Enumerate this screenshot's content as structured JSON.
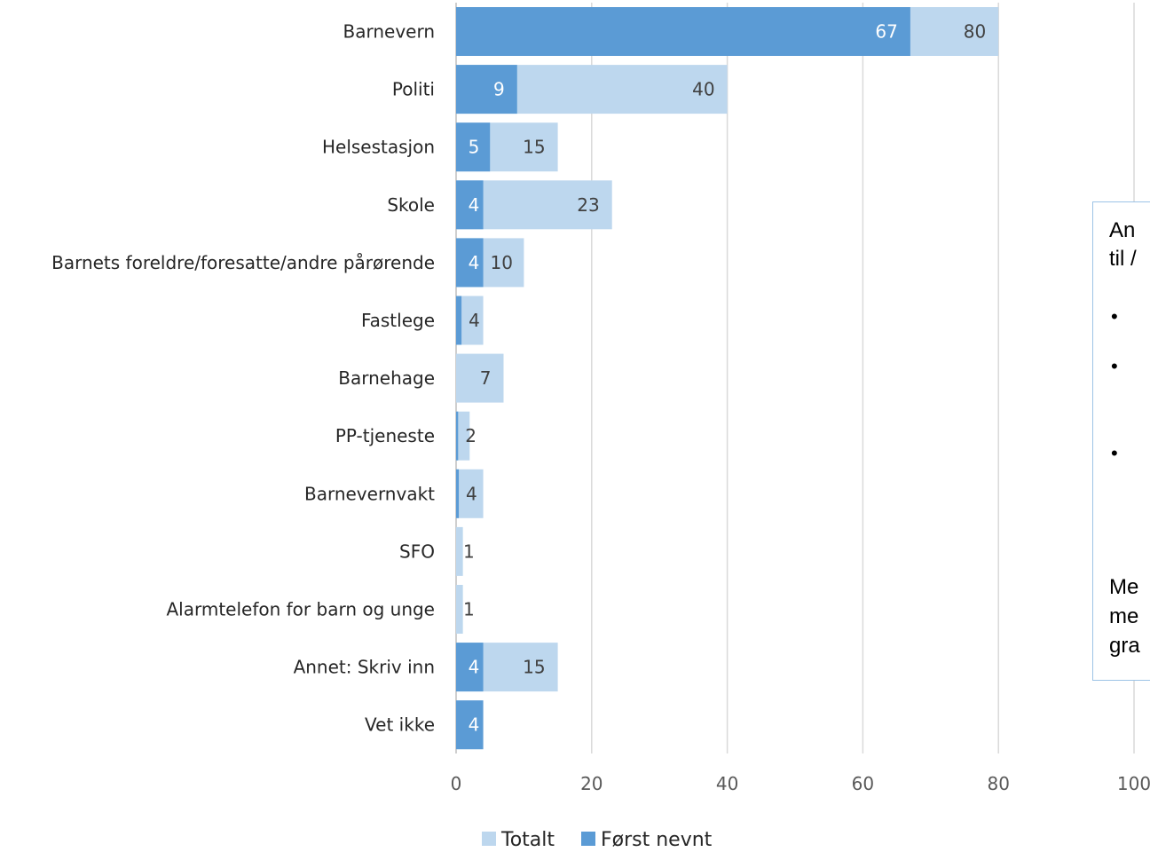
{
  "chart_data": {
    "type": "bar",
    "orientation": "horizontal",
    "categories": [
      "Barnevern",
      "Politi",
      "Helsestasjon",
      "Skole",
      "Barnets foreldre/foresatte/andre pårørende",
      "Fastlege",
      "Barnehage",
      "PP-tjeneste",
      "Barnevernvakt",
      "SFO",
      "Alarmtelefon for barn og unge",
      "Annet: Skriv inn",
      "Vet ikke"
    ],
    "series": [
      {
        "name": "Totalt",
        "color": "#bdd7ee",
        "values": [
          80,
          40,
          15,
          23,
          10,
          4,
          7,
          2,
          4,
          1,
          1,
          15,
          4
        ],
        "labels": [
          "80",
          "40",
          "15",
          "23",
          "10",
          "4",
          "7",
          "2",
          "4",
          "1",
          "1",
          "15",
          ""
        ]
      },
      {
        "name": "Først nevnt",
        "color": "#5b9bd5",
        "values": [
          67,
          9,
          5,
          4,
          4,
          0.8,
          0,
          0.3,
          0.4,
          0,
          0,
          4,
          4
        ],
        "labels": [
          "67",
          "9",
          "5",
          "4",
          "4",
          "",
          "",
          "",
          "",
          "",
          "",
          "4",
          "4"
        ]
      }
    ],
    "xlim": [
      0,
      100
    ],
    "xticks": [
      "0",
      "20",
      "40",
      "60",
      "80",
      "100"
    ],
    "grid": true,
    "legend_position": "bottom"
  },
  "note_box": {
    "line1": "An",
    "line2": "til /",
    "bullets": [
      "•",
      "•",
      "•"
    ],
    "line3": "Me",
    "line4": "me",
    "line5": "gra"
  }
}
